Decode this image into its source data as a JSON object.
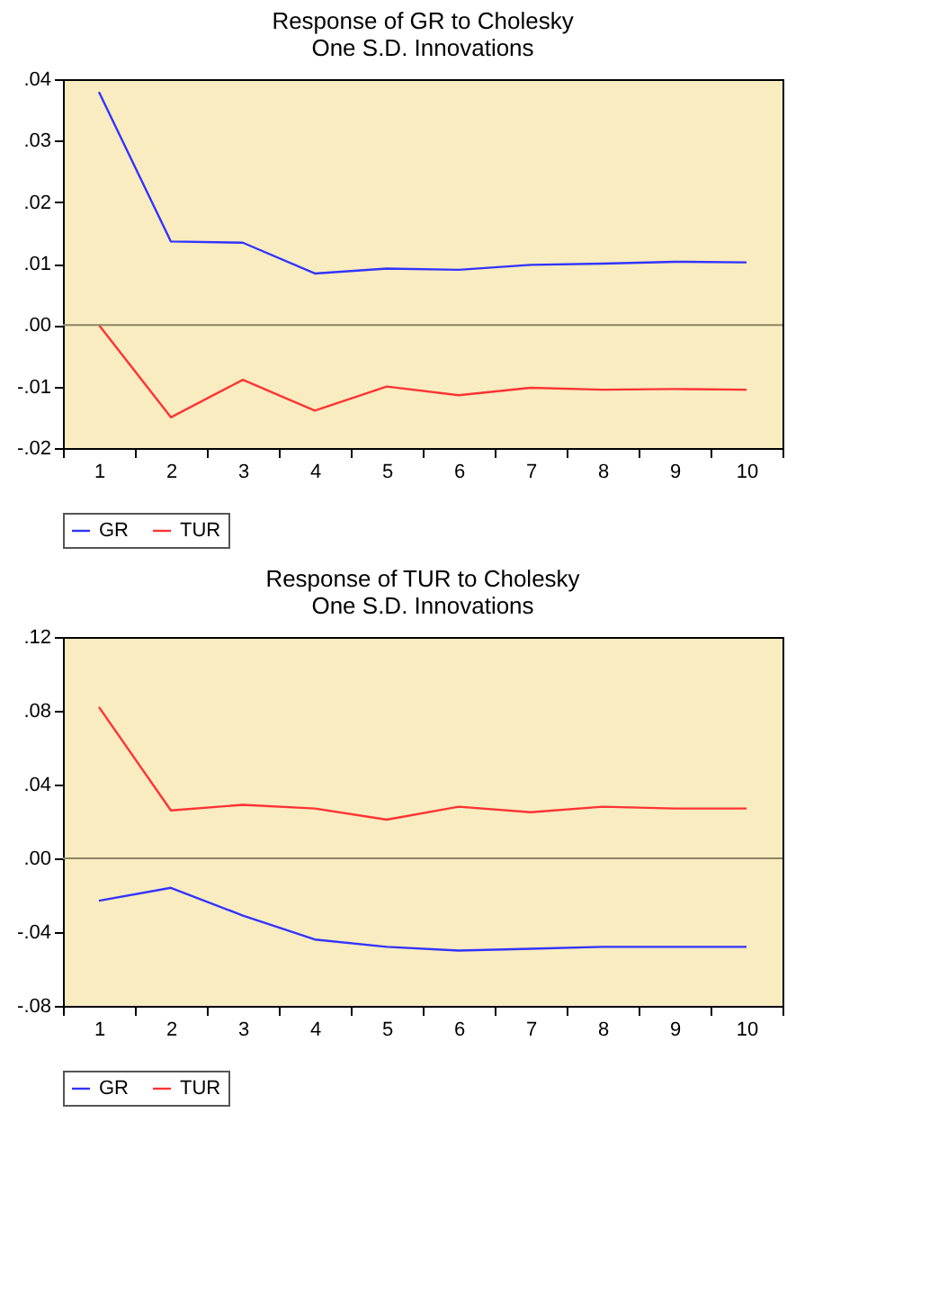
{
  "chart_data": [
    {
      "type": "line",
      "title": "Response of GR to Cholesky\nOne S.D. Innovations",
      "categories": [
        "1",
        "2",
        "3",
        "4",
        "5",
        "6",
        "7",
        "8",
        "9",
        "10"
      ],
      "series": [
        {
          "name": "GR",
          "color": "#3333ff",
          "values": [
            0.0379,
            0.0136,
            0.0134,
            0.0084,
            0.0092,
            0.009,
            0.0098,
            0.01,
            0.0103,
            0.0102
          ]
        },
        {
          "name": "TUR",
          "color": "#ff3333",
          "values": [
            0.0,
            -0.015,
            -0.0089,
            -0.0139,
            -0.01,
            -0.0114,
            -0.0102,
            -0.0105,
            -0.0104,
            -0.0105
          ]
        }
      ],
      "ylim": [
        -0.02,
        0.04
      ],
      "yticks": [
        {
          "value": -0.02,
          "label": "-.02"
        },
        {
          "value": -0.01,
          "label": "-.01"
        },
        {
          "value": 0,
          "label": ".00"
        },
        {
          "value": 0.01,
          "label": ".01"
        },
        {
          "value": 0.02,
          "label": ".02"
        },
        {
          "value": 0.03,
          "label": ".03"
        },
        {
          "value": 0.04,
          "label": ".04"
        }
      ],
      "ref_lines": [
        {
          "axis": "y",
          "value": 0,
          "color": "#8c8466"
        }
      ],
      "legend": "bottom",
      "grid": false
    },
    {
      "type": "line",
      "title": "Response of TUR to Cholesky\nOne S.D. Innovations",
      "categories": [
        "1",
        "2",
        "3",
        "4",
        "5",
        "6",
        "7",
        "8",
        "9",
        "10"
      ],
      "series": [
        {
          "name": "GR",
          "color": "#3333ff",
          "values": [
            -0.023,
            -0.016,
            -0.031,
            -0.044,
            -0.048,
            -0.05,
            -0.049,
            -0.048,
            -0.048,
            -0.048
          ]
        },
        {
          "name": "TUR",
          "color": "#ff3333",
          "values": [
            0.082,
            0.026,
            0.029,
            0.027,
            0.021,
            0.028,
            0.025,
            0.028,
            0.027,
            0.027
          ]
        }
      ],
      "ylim": [
        -0.08,
        0.12
      ],
      "yticks": [
        {
          "value": -0.08,
          "label": "-.08"
        },
        {
          "value": -0.04,
          "label": "-.04"
        },
        {
          "value": 0,
          "label": ".00"
        },
        {
          "value": 0.04,
          "label": ".04"
        },
        {
          "value": 0.08,
          "label": ".08"
        },
        {
          "value": 0.12,
          "label": ".12"
        }
      ],
      "ref_lines": [
        {
          "axis": "y",
          "value": 0,
          "color": "#8c8466"
        }
      ],
      "legend": "bottom",
      "grid": false
    }
  ]
}
